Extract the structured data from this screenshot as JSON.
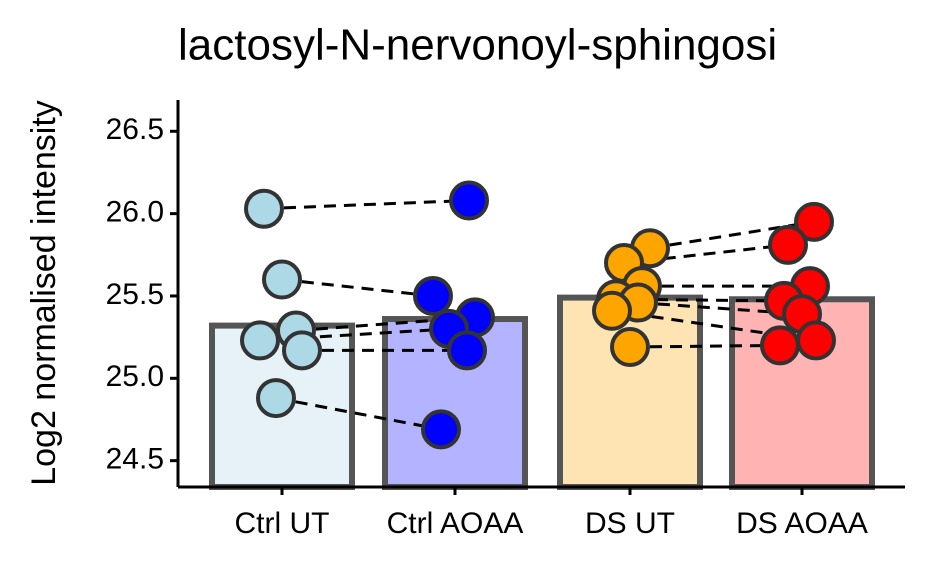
{
  "chart_data": {
    "type": "bar",
    "title": "lactosyl-N-nervonoyl-sphingosi",
    "y_label": "Log2 normalised intensity",
    "categories": [
      "Ctrl UT",
      "Ctrl AOAA",
      "DS UT",
      "DS AOAA"
    ],
    "values": [
      25.32,
      25.36,
      25.49,
      25.48
    ],
    "bar_colors": [
      "#e6f2f8",
      "#b3b3ff",
      "#ffe4b3",
      "#ffb3b3"
    ],
    "point_colors": [
      "#add8e6",
      "#0000ff",
      "#ffa500",
      "#ff0000"
    ],
    "points": [
      [
        26.03,
        25.6,
        25.29,
        25.23,
        25.17,
        24.88
      ],
      [
        26.08,
        25.5,
        25.37,
        25.3,
        25.17,
        24.69
      ],
      [
        25.79,
        25.7,
        25.56,
        25.48,
        25.46,
        25.41,
        25.19
      ],
      [
        25.95,
        25.81,
        25.56,
        25.47,
        25.39,
        25.23,
        25.2
      ]
    ],
    "ylim": [
      24.34,
      26.69
    ],
    "yticks": [
      24.5,
      {
        "value": 25,
        "label": "25.0"
      },
      25.5,
      {
        "value": 26,
        "label": "26.0"
      },
      26.5
    ]
  }
}
